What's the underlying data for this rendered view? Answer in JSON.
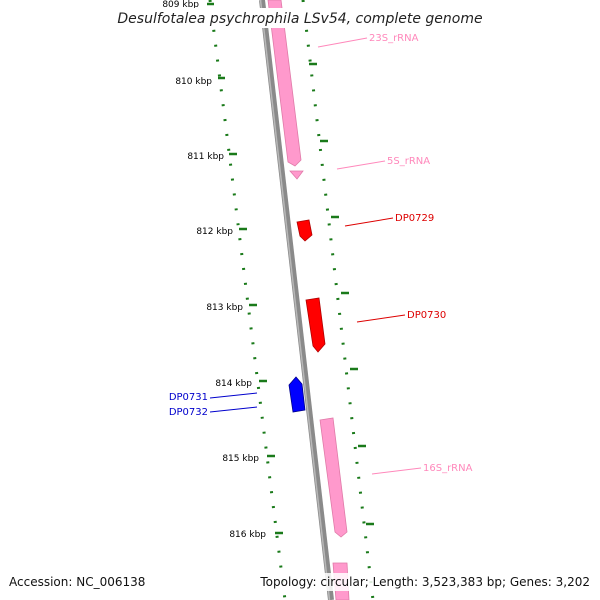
{
  "title": "Desulfotalea psychrophila LSv54, complete genome",
  "accession": "Accession: NC_006138",
  "summary": "Topology: circular; Length: 3,523,383 bp; Genes: 3,202",
  "colors": {
    "backbone": "#8a8a8a",
    "rRNA": "#ff99cc",
    "gene_forward": "#ff0000",
    "gene_reverse": "#0000ff",
    "tick": "#1a7a1a",
    "rRNA_label": "#ff88bb",
    "forward_label": "#dd0000",
    "reverse_label": "#0000cc"
  },
  "ticks": [
    {
      "label": "809 kbp"
    },
    {
      "label": "810 kbp"
    },
    {
      "label": "811 kbp"
    },
    {
      "label": "812 kbp"
    },
    {
      "label": "813 kbp"
    },
    {
      "label": "814 kbp"
    },
    {
      "label": "815 kbp"
    },
    {
      "label": "816 kbp"
    }
  ],
  "features": [
    {
      "name": "23S_rRNA",
      "type": "rRNA",
      "strand": "forward"
    },
    {
      "name": "5S_rRNA",
      "type": "rRNA",
      "strand": "forward"
    },
    {
      "name": "DP0729",
      "type": "gene",
      "strand": "forward"
    },
    {
      "name": "DP0730",
      "type": "gene",
      "strand": "forward"
    },
    {
      "name": "DP0731",
      "type": "gene",
      "strand": "reverse"
    },
    {
      "name": "DP0732",
      "type": "gene",
      "strand": "reverse"
    },
    {
      "name": "16S_rRNA",
      "type": "rRNA",
      "strand": "forward"
    }
  ]
}
